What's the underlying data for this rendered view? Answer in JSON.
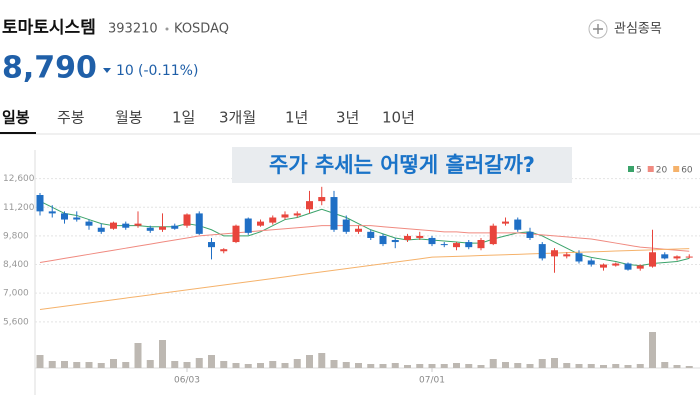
{
  "header": {
    "name": "토마토시스템",
    "code": "393210",
    "market": "KOSDAQ",
    "watch_button": "관심종목"
  },
  "price": {
    "value": "8,790",
    "change": "10",
    "change_pct": "(-0.11%)"
  },
  "tabs": [
    "일봉",
    "주봉",
    "월봉",
    "1일",
    "3개월",
    "1년",
    "3년",
    "10년"
  ],
  "chart_data": {
    "type": "candlestick",
    "annotation": "주가 추세는 어떻게 흘러갈까?",
    "categories": [
      null,
      null,
      null,
      null,
      null,
      null,
      null,
      null,
      null,
      null,
      null,
      null,
      "06/03",
      null,
      null,
      null,
      null,
      null,
      null,
      null,
      null,
      null,
      null,
      null,
      null,
      null,
      null,
      null,
      null,
      null,
      null,
      null,
      "07/01",
      null,
      null,
      null,
      null,
      null,
      null,
      null,
      null,
      null,
      null,
      null,
      null,
      null,
      null,
      null,
      null,
      null,
      null,
      null,
      null,
      null
    ],
    "open": [
      11800,
      11000,
      10900,
      10700,
      10500,
      10200,
      10150,
      10400,
      10300,
      10200,
      10100,
      10300,
      10300,
      10900,
      9500,
      9050,
      9500,
      10650,
      10300,
      10450,
      10700,
      10800,
      11100,
      11500,
      11700,
      10600,
      10000,
      10000,
      9800,
      9600,
      9600,
      9700,
      9700,
      9400,
      9250,
      9500,
      9200,
      9400,
      10400,
      10600,
      10000,
      9400,
      8800,
      8800,
      8950,
      8600,
      8250,
      8350,
      8450,
      8200,
      8300,
      8900,
      8700,
      8750
    ],
    "high": [
      11900,
      11300,
      11000,
      11000,
      10600,
      10400,
      10500,
      10500,
      11000,
      10300,
      10900,
      10400,
      10900,
      11000,
      9700,
      9200,
      10350,
      10700,
      10600,
      10800,
      11000,
      11000,
      12000,
      12200,
      12000,
      10800,
      10300,
      10100,
      9900,
      9700,
      9900,
      10000,
      9800,
      9500,
      9500,
      9600,
      9700,
      10400,
      10700,
      10700,
      10200,
      9500,
      9200,
      9000,
      9100,
      8700,
      8450,
      8500,
      8500,
      8400,
      10100,
      9000,
      8850,
      8900
    ],
    "low": [
      10800,
      10700,
      10400,
      10500,
      10100,
      9900,
      10100,
      10100,
      10200,
      9950,
      10000,
      10100,
      10200,
      9850,
      8650,
      8950,
      9450,
      9850,
      10250,
      10350,
      10600,
      10700,
      10900,
      11300,
      10000,
      9900,
      9900,
      9600,
      9300,
      9200,
      9500,
      9600,
      9300,
      9250,
      9100,
      9150,
      9100,
      9350,
      10300,
      10000,
      9600,
      8600,
      8000,
      8700,
      8450,
      8300,
      8100,
      8300,
      8100,
      8100,
      8250,
      8650,
      8600,
      8700
    ],
    "close": [
      11000,
      10900,
      10600,
      10600,
      10300,
      10000,
      10450,
      10200,
      10400,
      10050,
      10250,
      10150,
      10850,
      9900,
      9250,
      9150,
      10300,
      9950,
      10500,
      10700,
      10850,
      10900,
      11500,
      11700,
      10100,
      10000,
      10150,
      9700,
      9400,
      9500,
      9800,
      9800,
      9400,
      9350,
      9450,
      9250,
      9600,
      10300,
      10500,
      10100,
      9700,
      8700,
      9100,
      8900,
      8550,
      8400,
      8400,
      8450,
      8150,
      8350,
      9000,
      8700,
      8800,
      8790
    ],
    "volume": [
      13,
      7,
      7,
      6,
      6,
      5,
      9,
      6,
      25,
      8,
      28,
      7,
      6,
      10,
      13,
      7,
      5,
      4,
      5,
      7,
      5,
      9,
      13,
      15,
      8,
      6,
      5,
      4,
      4,
      5,
      3,
      4,
      4,
      4,
      5,
      4,
      3,
      9,
      6,
      5,
      4,
      9,
      10,
      5,
      4,
      4,
      3,
      4,
      3,
      4,
      36,
      6,
      3,
      2
    ],
    "series": [
      {
        "name": "5",
        "color": "#3aa36a",
        "values": [
          11500,
          11200,
          10900,
          10800,
          10600,
          10400,
          10300,
          10300,
          10300,
          10250,
          10250,
          10250,
          10400,
          10300,
          10100,
          9800,
          9800,
          9800,
          10000,
          10300,
          10600,
          10700,
          10900,
          11100,
          10900,
          10700,
          10400,
          10100,
          9900,
          9700,
          9600,
          9650,
          9600,
          9550,
          9500,
          9450,
          9450,
          9650,
          9800,
          9950,
          10000,
          9800,
          9500,
          9200,
          8900,
          8750,
          8650,
          8550,
          8400,
          8350,
          8450,
          8500,
          8550,
          8700
        ]
      },
      {
        "name": "20",
        "color": "#f08a80",
        "values": [
          8500,
          8600,
          8700,
          8800,
          8900,
          9000,
          9100,
          9200,
          9300,
          9400,
          9500,
          9600,
          9700,
          9800,
          9850,
          9900,
          9950,
          10000,
          10050,
          10100,
          10150,
          10200,
          10250,
          10300,
          10300,
          10300,
          10300,
          10300,
          10250,
          10200,
          10150,
          10100,
          10050,
          10000,
          10000,
          9950,
          9950,
          9950,
          9950,
          9950,
          9900,
          9850,
          9800,
          9750,
          9700,
          9650,
          9550,
          9450,
          9350,
          9250,
          9200,
          9150,
          9100,
          9050
        ]
      },
      {
        "name": "60",
        "color": "#f5b26b",
        "values": [
          6200,
          6280,
          6360,
          6440,
          6520,
          6600,
          6680,
          6760,
          6840,
          6920,
          7000,
          7080,
          7160,
          7240,
          7320,
          7400,
          7480,
          7560,
          7640,
          7720,
          7800,
          7880,
          7960,
          8040,
          8120,
          8200,
          8280,
          8360,
          8440,
          8520,
          8600,
          8680,
          8760,
          8780,
          8800,
          8820,
          8840,
          8860,
          8880,
          8900,
          8920,
          8940,
          8960,
          8980,
          9000,
          9020,
          9040,
          9060,
          9080,
          9100,
          9120,
          9140,
          9160,
          9180
        ]
      }
    ],
    "ylim": [
      5200,
      14000
    ],
    "yticks": [
      {
        "value": 12600,
        "label": "12,600"
      },
      {
        "value": 11200,
        "label": "11,200"
      },
      {
        "value": 9800,
        "label": "9,800"
      },
      {
        "value": 8400,
        "label": "8,400"
      },
      {
        "value": 7000,
        "label": "7,000"
      },
      {
        "value": 5600,
        "label": "5,600"
      }
    ],
    "grid": true,
    "legend": "top-right",
    "up_color": "#e8453c",
    "down_color": "#1f6fc5",
    "volume_color": "#bdb8b2"
  }
}
